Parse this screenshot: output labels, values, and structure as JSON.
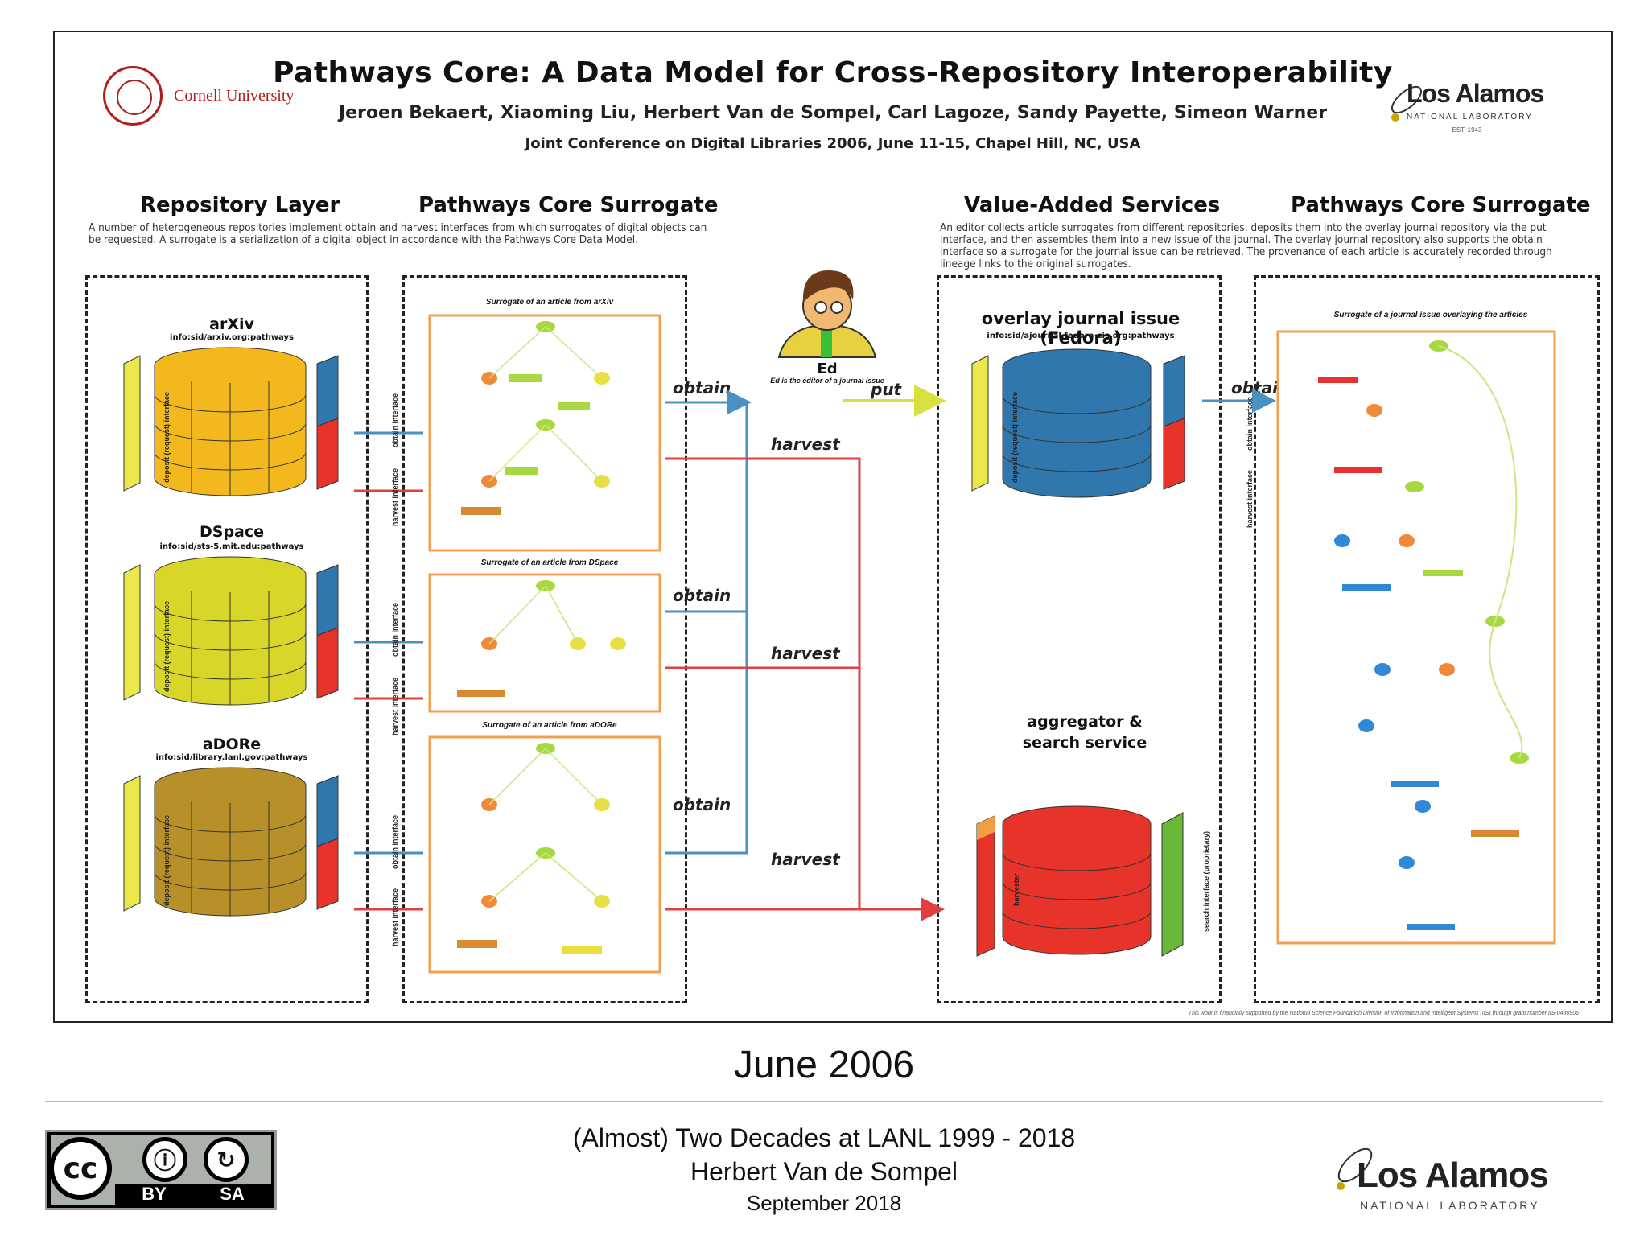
{
  "poster": {
    "title": "Pathways Core: A Data Model for Cross-Repository Interoperability",
    "authors": "Jeroen Bekaert, Xiaoming Liu, Herbert Van de Sompel, Carl Lagoze, Sandy Payette, Simeon Warner",
    "conference": "Joint Conference on Digital Libraries 2006, June 11-15, Chapel Hill, NC, USA",
    "cornell": "Cornell University",
    "lanl_name": "Los Alamos",
    "lanl_sub": "NATIONAL LABORATORY",
    "lanl_est": "EST. 1943",
    "headings": {
      "repository_layer": "Repository Layer",
      "surrogate_left": "Pathways Core Surrogate",
      "value_added": "Value-Added Services",
      "surrogate_right": "Pathways Core Surrogate"
    },
    "desc_left": "A number of heterogeneous repositories implement obtain and harvest interfaces from which surrogates of digital objects can be requested. A surrogate is a serialization of a digital object in accordance with the Pathways Core Data Model.",
    "desc_right": "An editor collects article surrogates from different repositories, deposits them into the overlay journal repository via the put interface, and then assembles them into a new issue of the journal. The overlay journal repository also supports the obtain interface so a surrogate for the journal issue can be retrieved. The provenance of each article is accurately recorded through lineage links to the original surrogates.",
    "repos": [
      {
        "name": "arXiv",
        "id": "info:sid/arxiv.org:pathways"
      },
      {
        "name": "DSpace",
        "id": "info:sid/sts-5.mit.edu:pathways"
      },
      {
        "name": "aDORe",
        "id": "info:sid/library.lanl.gov:pathways"
      }
    ],
    "surrogate_titles": [
      "Surrogate of an article from arXiv",
      "Surrogate of an article from DSpace",
      "Surrogate of an article from aDORe"
    ],
    "arrows": {
      "obtain": "obtain",
      "harvest": "harvest",
      "put": "put"
    },
    "editor": {
      "name": "Ed",
      "caption": "Ed is the editor of a journal issue"
    },
    "overlay": {
      "name": "overlay journal issue (Fedora)",
      "id": "info:sid/ajournal.fedora-cis.org:pathways"
    },
    "aggregator": {
      "line1": "aggregator &",
      "line2": "search service"
    },
    "surrogate_right_title": "Surrogate of a journal issue overlaying the articles",
    "interfaces": {
      "deposit": "deposit (request) interface",
      "obtain": "obtain interface",
      "harvest": "harvest interface",
      "harvester": "harvester",
      "search": "search interface (proprietary)"
    },
    "funding": "This work is financially supported by the National Science Foundation Division of Information and Intelligent Systems (IIS) through grant number IIS-0430906"
  },
  "slide": {
    "date": "June 2006",
    "footer_line1": "(Almost) Two Decades at LANL 1999 - 2018",
    "footer_line2": "Herbert Van de Sompel",
    "footer_line3": "September 2018",
    "cc_by": "BY",
    "cc_sa": "SA",
    "cc_mark": "cc",
    "lanl_name": "Los Alamos",
    "lanl_sub": "NATIONAL LABORATORY"
  },
  "colors": {
    "arxiv": "#f2b81e",
    "dspace": "#d9d62a",
    "adore": "#b8902a",
    "overlay": "#2f77ad",
    "aggregator": "#e8332a",
    "obtain_line": "#4a90c0",
    "harvest_line": "#e04040",
    "put_line": "#d8e040"
  }
}
